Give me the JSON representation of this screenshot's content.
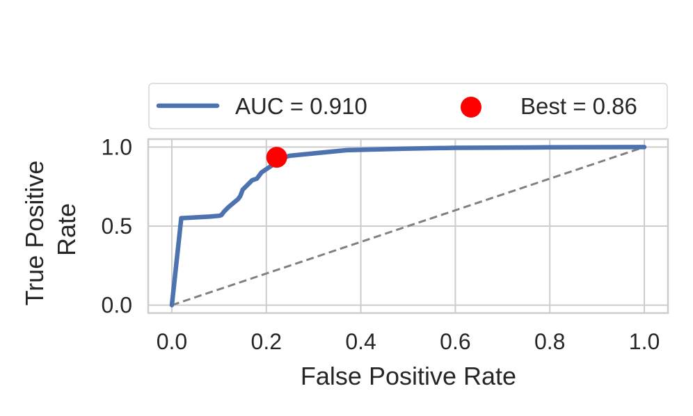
{
  "chart_data": {
    "type": "line",
    "title": "",
    "xlabel": "False Positive Rate",
    "ylabel": "True Positive\nRate",
    "xlim": [
      -0.05,
      1.05
    ],
    "ylim": [
      -0.05,
      1.05
    ],
    "x_ticks": [
      "0.0",
      "0.2",
      "0.4",
      "0.6",
      "0.8",
      "1.0"
    ],
    "y_ticks": [
      "0.0",
      "0.5",
      "1.0"
    ],
    "grid": true,
    "legend_position": "top",
    "colors": {
      "roc": "#4c72b0",
      "best": "#ff0000",
      "diagonal": "#808080",
      "grid": "#cccccc"
    },
    "series": [
      {
        "name": "AUC = 0.910",
        "x": [
          0.0,
          0.02,
          0.05,
          0.08,
          0.1,
          0.105,
          0.11,
          0.12,
          0.13,
          0.14,
          0.145,
          0.15,
          0.16,
          0.17,
          0.18,
          0.19,
          0.2,
          0.21,
          0.22,
          0.23,
          0.25,
          0.3,
          0.37,
          0.5,
          0.6,
          0.8,
          1.0
        ],
        "y": [
          0.0,
          0.55,
          0.555,
          0.56,
          0.565,
          0.57,
          0.59,
          0.62,
          0.645,
          0.67,
          0.69,
          0.73,
          0.76,
          0.79,
          0.8,
          0.84,
          0.86,
          0.88,
          0.9,
          0.93,
          0.945,
          0.96,
          0.98,
          0.99,
          0.995,
          0.998,
          1.0
        ]
      },
      {
        "name": "diagonal",
        "x": [
          0.0,
          1.0
        ],
        "y": [
          0.0,
          1.0
        ]
      }
    ],
    "best_point": {
      "label": "Best = 0.86",
      "x": 0.222,
      "y": 0.935
    }
  }
}
